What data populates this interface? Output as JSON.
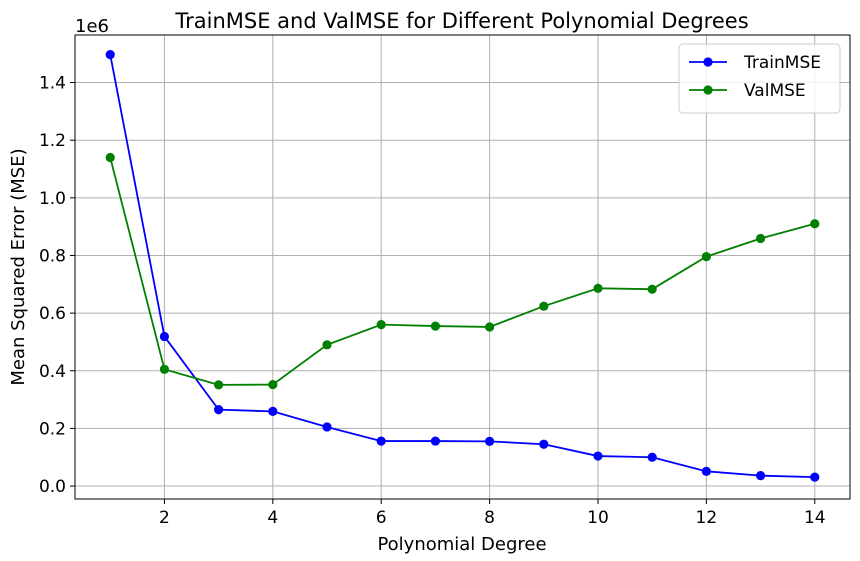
{
  "chart_data": {
    "type": "line",
    "title": "TrainMSE and ValMSE for Different Polynomial Degrees",
    "xlabel": "Polynomial Degree",
    "ylabel": "Mean Squared Error (MSE)",
    "y_offset_label": "1e6",
    "x": [
      1,
      2,
      3,
      4,
      5,
      6,
      7,
      8,
      9,
      10,
      11,
      12,
      13,
      14
    ],
    "xlim": [
      0.35,
      14.65
    ],
    "ylim": [
      -0.045,
      1.565
    ],
    "xticks": [
      2,
      4,
      6,
      8,
      10,
      12,
      14
    ],
    "xtick_labels": [
      "2",
      "4",
      "6",
      "8",
      "10",
      "12",
      "14"
    ],
    "yticks": [
      0.0,
      0.2,
      0.4,
      0.6,
      0.8,
      1.0,
      1.2,
      1.4
    ],
    "ytick_labels": [
      "0.0",
      "0.2",
      "0.4",
      "0.6",
      "0.8",
      "1.0",
      "1.2",
      "1.4"
    ],
    "grid": true,
    "legend_position": "top-right",
    "series": [
      {
        "name": "TrainMSE",
        "color": "#0000ff",
        "values": [
          1.497,
          0.519,
          0.265,
          0.259,
          0.205,
          0.156,
          0.156,
          0.155,
          0.145,
          0.104,
          0.1,
          0.051,
          0.036,
          0.031
        ]
      },
      {
        "name": "ValMSE",
        "color": "#008000",
        "values": [
          1.14,
          0.405,
          0.351,
          0.352,
          0.49,
          0.56,
          0.555,
          0.552,
          0.624,
          0.686,
          0.683,
          0.796,
          0.859,
          0.91
        ]
      }
    ]
  }
}
